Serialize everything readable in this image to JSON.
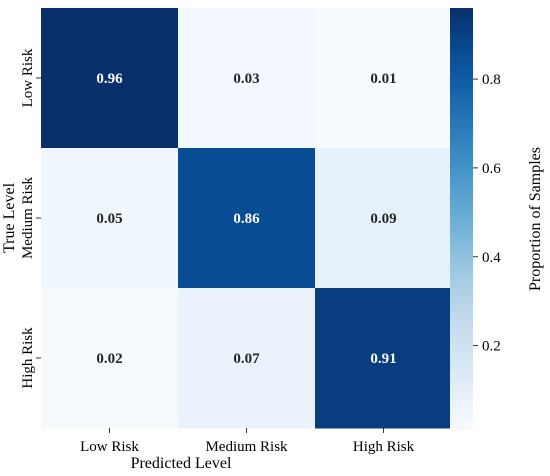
{
  "chart_data": {
    "type": "heatmap",
    "xlabel": "Predicted Level",
    "ylabel": "True Level",
    "x_categories": [
      "Low Risk",
      "Medium Risk",
      "High Risk"
    ],
    "y_categories": [
      "Low Risk",
      "Medium Risk",
      "High Risk"
    ],
    "values": [
      [
        0.96,
        0.03,
        0.01
      ],
      [
        0.05,
        0.86,
        0.09
      ],
      [
        0.02,
        0.07,
        0.91
      ]
    ],
    "colorbar": {
      "label": "Proportion of Samples",
      "range": [
        0.01,
        0.96
      ],
      "ticks": [
        0.2,
        0.4,
        0.6,
        0.8
      ],
      "colormap": "Blues"
    },
    "grid": false
  }
}
